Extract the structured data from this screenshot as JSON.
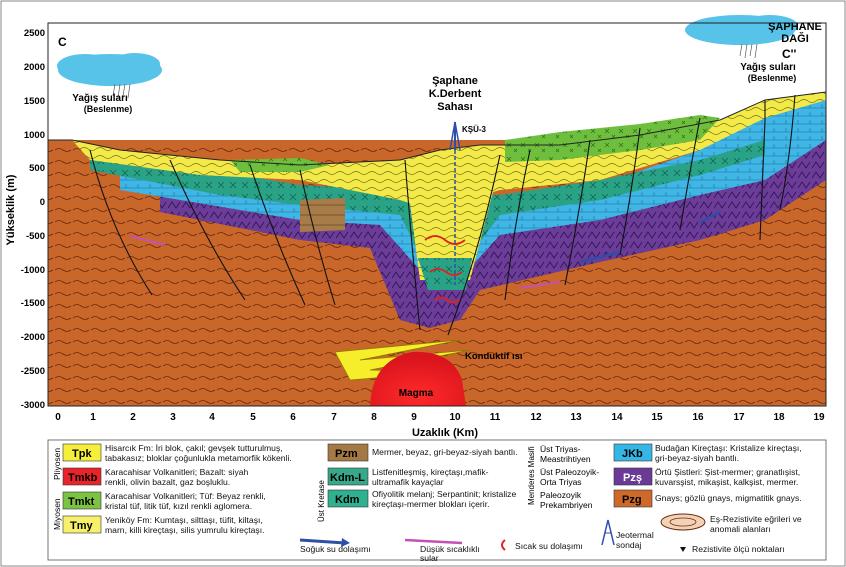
{
  "figure": {
    "y_axis_label": "Yükseklik (m)",
    "x_axis_label": "Uzaklık (Km)",
    "y_ticks": [
      "2500",
      "2000",
      "1500",
      "1000",
      "500",
      "0",
      "-500",
      "-1000",
      "-1500",
      "-2000",
      "-2500",
      "-3000"
    ],
    "x_ticks": [
      "0",
      "1",
      "2",
      "3",
      "4",
      "5",
      "6",
      "7",
      "8",
      "9",
      "10",
      "11",
      "12",
      "13",
      "14",
      "15",
      "16",
      "17",
      "18",
      "19"
    ],
    "section_left": "C",
    "section_right": "C''",
    "mountain_name": "ŞAPHANE",
    "mountain_name2": "DAĞI",
    "recharge_left": "Yağış suları",
    "recharge_left2": "(Beslenme)",
    "recharge_right": "Yağış suları",
    "recharge_right2": "(Beslenme)",
    "site_title1": "Şaphane",
    "site_title2": "K.Derbent",
    "site_title3": "Sahası",
    "well_label": "KŞÜ-3",
    "conductive_heat": "Konduktif ısı",
    "magma": "Magma"
  },
  "legend": {
    "period_pliyosen": "Pliyosen",
    "period_miyosen": "Miyosen",
    "period_ust_kretase": "Üst Kretase",
    "period_menderes": "Menderes Masifi",
    "units_left": [
      {
        "code": "Tpk",
        "color": "#f4ef3a",
        "desc1": "Hisarcık Fm: İri blok, çakıl; gevşek tutturulmuş,",
        "desc2": "tabakasız; bloklar çoğunlukla metamorfik kökenli."
      },
      {
        "code": "Tmkb",
        "color": "#e8232a",
        "desc1": "Karacahisar Volkanitleri; Bazalt: siyah",
        "desc2": "renkli, olivin bazalt, gaz boşluklu."
      },
      {
        "code": "Tmkt",
        "color": "#7cc243",
        "desc1": "Karacahisar Volkanitleri; Tüf: Beyaz renkli,",
        "desc2": "kristal tüf, litik tüf, kızıl renkli aglomera."
      },
      {
        "code": "Tmy",
        "color": "#f6f06a",
        "desc1": "Yeniköy Fm: Kumtaşı, silttaşı, tüfit, kiltaşı,",
        "desc2": "marn, killi kireçtaşı, silis yumrulu kireçtaşı."
      }
    ],
    "units_mid": [
      {
        "code": "Pzm",
        "color": "#a57943",
        "desc1": "Mermer, beyaz, gri-beyaz-siyah bantlı.",
        "desc2": ""
      },
      {
        "code": "Kdm-L",
        "color": "#37a88a",
        "desc1": "Listfenitleşmiş, kireçtaşı,mafik-",
        "desc2": "ultramafik kayaçlar"
      },
      {
        "code": "Kdm",
        "color": "#2fb08f",
        "desc1": "Ofiyolitik melanj; Serpantinit; kristalize",
        "desc2": "kireçtaşı-mermer blokları içerir."
      }
    ],
    "ages_right": [
      "Üst Triyas-",
      "Meastrihtiyen",
      "Üst Paleozoyik-",
      "Orta Triyas",
      "Paleozoyik",
      "Prekambriyen"
    ],
    "units_right": [
      {
        "code": "JKb",
        "color": "#35b7e6",
        "desc1": "Budağan Kireçtaşı: Kristalize kireçtaşı,",
        "desc2": "gri-beyaz-siyah bantlı."
      },
      {
        "code": "Pzş",
        "color": "#6a3a96",
        "desc1": "Örtü Şistleri: Şist-mermer; granatlışist,",
        "desc2": "kuvarsşist, mikaşist, kalkşist, mermer."
      },
      {
        "code": "Pzg",
        "color": "#cd6a2a",
        "desc1": "Gnays; gözlü gnays, migmatitik gnays.",
        "desc2": ""
      }
    ],
    "cold_water": "Soğuk su dolaşımı",
    "low_temp_water1": "Düşük sıcaklıklı",
    "low_temp_water2": "sular",
    "hot_water": "Sıcak su dolaşımı",
    "geothermal1": "Jeotermal",
    "geothermal2": "sondaj",
    "resistivity_curves1": "Eş-Rezistivite eğrileri ve",
    "resistivity_curves2": "anomali alanları",
    "resistivity_points": "Rezistivite ölçü noktaları"
  }
}
